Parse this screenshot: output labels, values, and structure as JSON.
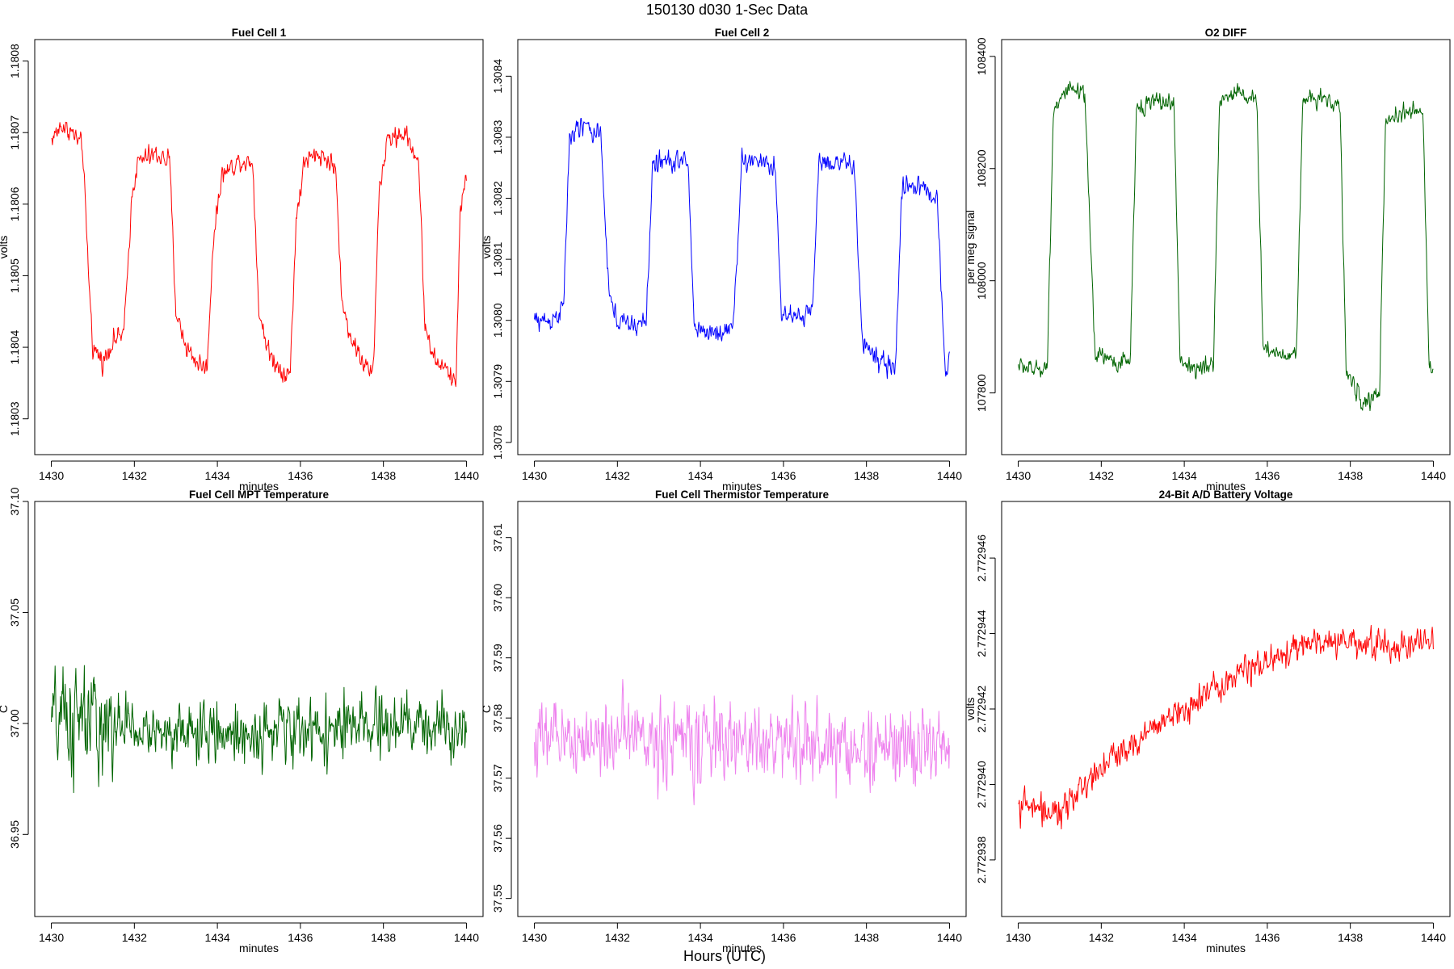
{
  "figure": {
    "title": "150130   d030   1-Sec Data",
    "xlabel_outer": "Hours (UTC)"
  },
  "chart_data": [
    {
      "type": "line",
      "title": "Fuel Cell 1",
      "xlabel": "minutes",
      "ylabel": "volts",
      "color": "#ff0000",
      "xlim": [
        1429.6,
        1440.4
      ],
      "ylim": [
        1.18025,
        1.18083
      ],
      "xticks": [
        1430,
        1432,
        1434,
        1436,
        1438,
        1440
      ],
      "yticks": [
        1.1803,
        1.1804,
        1.1805,
        1.1806,
        1.1807,
        1.1808
      ],
      "ytick_labels": [
        "1.1803",
        "1.1804",
        "1.1805",
        "1.1806",
        "1.1807",
        "1.1808"
      ],
      "series": [
        {
          "x": [
            1430.0,
            1430.25,
            1430.5,
            1430.75,
            1430.9,
            1431.0,
            1431.25,
            1431.5,
            1431.75,
            1431.95,
            1432.1,
            1432.5,
            1432.85,
            1433.0,
            1433.25,
            1433.5,
            1433.75,
            1433.9,
            1434.1,
            1434.5,
            1434.85,
            1435.0,
            1435.25,
            1435.5,
            1435.75,
            1435.9,
            1436.1,
            1436.5,
            1436.85,
            1437.0,
            1437.25,
            1437.5,
            1437.75,
            1437.9,
            1438.1,
            1438.5,
            1438.85,
            1439.0,
            1439.25,
            1439.5,
            1439.75,
            1439.85,
            1440.0
          ],
          "y": [
            1.18069,
            1.18071,
            1.1807,
            1.18068,
            1.1805,
            1.1804,
            1.18038,
            1.18041,
            1.18042,
            1.18062,
            1.18066,
            1.18067,
            1.18066,
            1.18045,
            1.1804,
            1.18038,
            1.18037,
            1.18055,
            1.18064,
            1.18066,
            1.18066,
            1.18045,
            1.18039,
            1.18037,
            1.18036,
            1.18058,
            1.18066,
            1.18067,
            1.18065,
            1.18046,
            1.18041,
            1.18038,
            1.18036,
            1.18062,
            1.18069,
            1.1807,
            1.18066,
            1.18043,
            1.18038,
            1.18037,
            1.18035,
            1.1806,
            1.18064
          ],
          "noise": 1.8e-05
        }
      ]
    },
    {
      "type": "line",
      "title": "Fuel Cell 2",
      "xlabel": "minutes",
      "ylabel": "volts",
      "color": "#0000ff",
      "xlim": [
        1429.6,
        1440.4
      ],
      "ylim": [
        1.30778,
        1.30846
      ],
      "xticks": [
        1430,
        1432,
        1434,
        1436,
        1438,
        1440
      ],
      "yticks": [
        1.3078,
        1.3079,
        1.308,
        1.3081,
        1.3082,
        1.3083,
        1.3084
      ],
      "ytick_labels": [
        "1.3078",
        "1.3079",
        "1.3080",
        "1.3081",
        "1.3082",
        "1.3083",
        "1.3084"
      ],
      "series": [
        {
          "x": [
            1430.0,
            1430.4,
            1430.7,
            1430.85,
            1431.2,
            1431.6,
            1431.8,
            1432.0,
            1432.4,
            1432.7,
            1432.85,
            1433.3,
            1433.7,
            1433.85,
            1434.2,
            1434.6,
            1434.8,
            1435.0,
            1435.5,
            1435.8,
            1435.95,
            1436.3,
            1436.7,
            1436.85,
            1437.3,
            1437.7,
            1437.9,
            1438.3,
            1438.7,
            1438.85,
            1439.3,
            1439.7,
            1439.9,
            1440.0
          ],
          "y": [
            1.308,
            1.308,
            1.30802,
            1.3083,
            1.30832,
            1.3083,
            1.30804,
            1.308,
            1.30799,
            1.308,
            1.30826,
            1.30826,
            1.30826,
            1.30799,
            1.30798,
            1.30798,
            1.308,
            1.30826,
            1.30826,
            1.30825,
            1.30801,
            1.308,
            1.30802,
            1.30826,
            1.30826,
            1.30825,
            1.30797,
            1.30793,
            1.30792,
            1.30822,
            1.30822,
            1.3082,
            1.30792,
            1.30794
          ],
          "noise": 2.2e-05
        }
      ]
    },
    {
      "type": "line",
      "title": "O2 DIFF",
      "xlabel": "minutes",
      "ylabel": "per meg signal",
      "color": "#006400",
      "xlim": [
        1429.6,
        1440.4
      ],
      "ylim": [
        107690,
        108430
      ],
      "xticks": [
        1430,
        1432,
        1434,
        1436,
        1438,
        1440
      ],
      "yticks": [
        107800,
        108000,
        108200,
        108400
      ],
      "ytick_labels": [
        "107800",
        "108000",
        "108200",
        "108400"
      ],
      "series": [
        {
          "x": [
            1430.0,
            1430.4,
            1430.7,
            1430.85,
            1431.2,
            1431.6,
            1431.85,
            1432.0,
            1432.4,
            1432.7,
            1432.85,
            1433.3,
            1433.75,
            1433.9,
            1434.3,
            1434.7,
            1434.85,
            1435.3,
            1435.75,
            1435.9,
            1436.3,
            1436.7,
            1436.85,
            1437.3,
            1437.75,
            1437.9,
            1438.3,
            1438.7,
            1438.85,
            1439.3,
            1439.75,
            1439.9,
            1440.0
          ],
          "y": [
            107850,
            107840,
            107850,
            108310,
            108340,
            108330,
            107870,
            107870,
            107850,
            107860,
            108310,
            108320,
            108315,
            107860,
            107840,
            107850,
            108320,
            108340,
            108315,
            107880,
            107870,
            107870,
            108320,
            108330,
            108310,
            107840,
            107780,
            107800,
            108280,
            108300,
            108300,
            107850,
            107830
          ],
          "noise": 20
        }
      ]
    },
    {
      "type": "line",
      "title": "Fuel Cell MPT Temperature",
      "xlabel": "minutes",
      "ylabel": "C",
      "color": "#006400",
      "xlim": [
        1429.6,
        1440.4
      ],
      "ylim": [
        36.913,
        37.1
      ],
      "xticks": [
        1430,
        1432,
        1434,
        1436,
        1438,
        1440
      ],
      "yticks": [
        36.95,
        37.0,
        37.05,
        37.1
      ],
      "ytick_labels": [
        "36.95",
        "37.00",
        "37.05",
        "37.10"
      ],
      "series": [
        {
          "x": [
            1430.0,
            1431.0,
            1431.5,
            1432.0,
            1434.0,
            1436.0,
            1438.0,
            1440.0
          ],
          "y": [
            37.0,
            37.0,
            36.998,
            36.997,
            36.995,
            36.997,
            36.998,
            37.0
          ],
          "noise": [
            0.03,
            0.035,
            0.022,
            0.016,
            0.017,
            0.018,
            0.018,
            0.016
          ]
        }
      ]
    },
    {
      "type": "line",
      "title": "Fuel Cell Thermistor Temperature",
      "xlabel": "minutes",
      "ylabel": "C",
      "color": "#ee82ee",
      "xlim": [
        1429.6,
        1440.4
      ],
      "ylim": [
        37.547,
        37.616
      ],
      "xticks": [
        1430,
        1432,
        1434,
        1436,
        1438,
        1440
      ],
      "yticks": [
        37.55,
        37.56,
        37.57,
        37.58,
        37.59,
        37.6,
        37.61
      ],
      "ytick_labels": [
        "37.55",
        "37.56",
        "37.57",
        "37.58",
        "37.59",
        "37.60",
        "37.61"
      ],
      "series": [
        {
          "x": [
            1430.0,
            1432.0,
            1434.0,
            1436.0,
            1438.0,
            1440.0
          ],
          "y": [
            37.576,
            37.577,
            37.576,
            37.576,
            37.575,
            37.575
          ],
          "noise": 0.0085
        }
      ]
    },
    {
      "type": "line",
      "title": "24-Bit A/D Battery Voltage",
      "xlabel": "minutes",
      "ylabel": "volts",
      "color": "#ff0000",
      "xlim": [
        1429.6,
        1440.4
      ],
      "ylim": [
        2.7729365,
        2.7729475
      ],
      "xticks": [
        1430,
        1432,
        1434,
        1436,
        1438,
        1440
      ],
      "yticks": [
        2.772938,
        2.77294,
        2.772942,
        2.772944,
        2.772946
      ],
      "ytick_labels": [
        "2.772938",
        "2.772940",
        "2.772942",
        "2.772944",
        "2.772946"
      ],
      "series": [
        {
          "x": [
            1430.0,
            1431.0,
            1432.0,
            1433.0,
            1434.0,
            1435.0,
            1436.0,
            1437.0,
            1438.0,
            1439.0,
            1440.0
          ],
          "y": [
            2.7729395,
            2.7729392,
            2.7729405,
            2.7729413,
            2.772942,
            2.7729428,
            2.7729433,
            2.7729437,
            2.7729438,
            2.7729436,
            2.7729438
          ],
          "noise": 5e-07
        }
      ]
    }
  ]
}
